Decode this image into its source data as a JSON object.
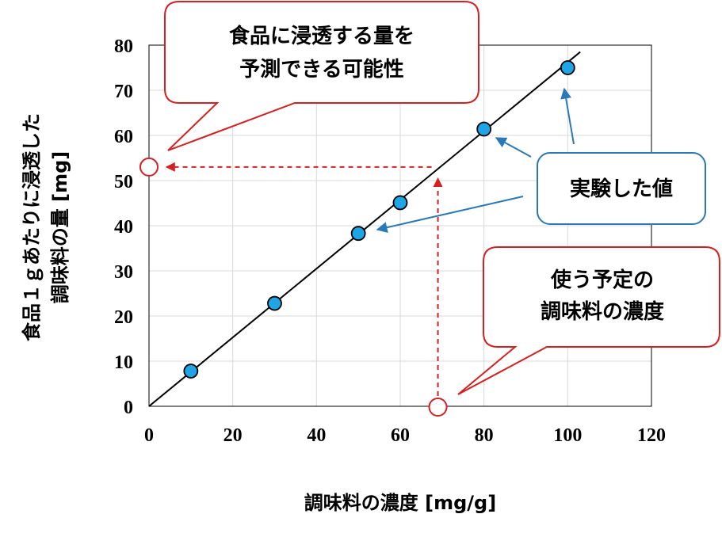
{
  "chart_data": {
    "type": "scatter",
    "title": "",
    "xlabel": "調味料の濃度 [mg/g]",
    "ylabel_lines": [
      "食品１ｇあたりに浸透した",
      "調味料の量 [mg]"
    ],
    "xlim": [
      0,
      120
    ],
    "ylim": [
      0,
      80
    ],
    "xticks": [
      0,
      20,
      40,
      60,
      80,
      100,
      120
    ],
    "yticks": [
      0,
      10,
      20,
      30,
      40,
      50,
      60,
      70,
      80
    ],
    "grid": true,
    "series": [
      {
        "points": [
          {
            "x": 10,
            "y": 7.8
          },
          {
            "x": 30,
            "y": 22.8
          },
          {
            "x": 50,
            "y": 38.3
          },
          {
            "x": 60,
            "y": 45.1
          },
          {
            "x": 80,
            "y": 61.4
          },
          {
            "x": 100,
            "y": 75.0
          }
        ]
      }
    ],
    "fit_line": {
      "x_start": 0,
      "y_start": 0,
      "x_end": 103,
      "y_end": 78.5
    },
    "estimate": {
      "x": 69,
      "y": 53
    },
    "annotations": [
      {
        "id": "predict",
        "lines": [
          "食品に浸透する量を",
          "予測できる可能性"
        ],
        "color": "#d62020"
      },
      {
        "id": "measured",
        "lines": [
          "実験した値"
        ],
        "color": "#2a78b5"
      },
      {
        "id": "planned",
        "lines": [
          "使う予定の",
          "調味料の濃度"
        ],
        "color": "#d62020"
      }
    ]
  },
  "colors": {
    "marker_fill": "#1ea5e6",
    "marker_stroke": "#000000",
    "red": "#d62020",
    "blue": "#2a78b5",
    "grid": "#d9d9d9"
  }
}
